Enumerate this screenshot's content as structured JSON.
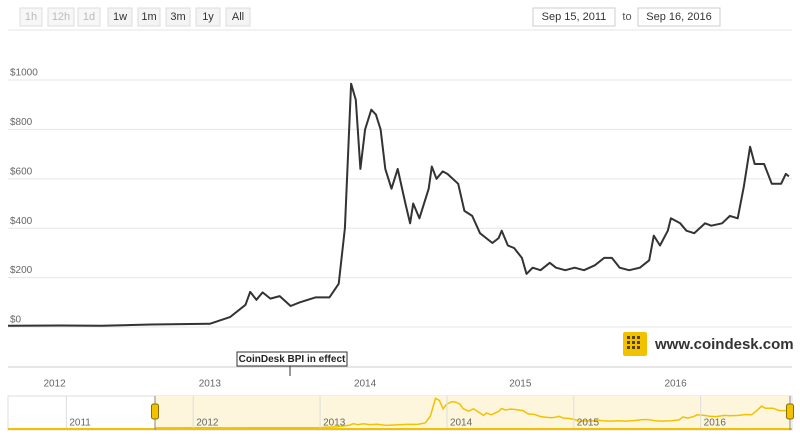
{
  "range_selector": {
    "buttons": [
      "1h",
      "12h",
      "1d",
      "1w",
      "1m",
      "3m",
      "1y",
      "All"
    ],
    "enabled": [
      false,
      false,
      false,
      true,
      true,
      true,
      true,
      true
    ],
    "from": "Sep 15, 2011",
    "to_label": "to",
    "to": "Sep 16, 2016"
  },
  "watermark": "www.coindesk.com",
  "chart_data": {
    "type": "line",
    "annotation": "CoinDesk BPI in effect",
    "x": [
      2011.7,
      2012.04,
      2012.3,
      2012.62,
      2013.0,
      2013.13,
      2013.23,
      2013.26,
      2013.3,
      2013.34,
      2013.39,
      2013.45,
      2013.52,
      2013.58,
      2013.68,
      2013.77,
      2013.83,
      2013.87,
      2013.91,
      2013.94,
      2013.97,
      2014.0,
      2014.04,
      2014.07,
      2014.1,
      2014.13,
      2014.17,
      2014.21,
      2014.26,
      2014.29,
      2014.31,
      2014.35,
      2014.41,
      2014.43,
      2014.46,
      2014.5,
      2014.53,
      2014.6,
      2014.64,
      2014.69,
      2014.74,
      2014.78,
      2014.82,
      2014.86,
      2014.88,
      2014.92,
      2014.96,
      2015.01,
      2015.04,
      2015.08,
      2015.13,
      2015.19,
      2015.23,
      2015.29,
      2015.35,
      2015.41,
      2015.48,
      2015.54,
      2015.59,
      2015.64,
      2015.7,
      2015.77,
      2015.83,
      2015.86,
      2015.9,
      2015.95,
      2015.97,
      2016.03,
      2016.07,
      2016.12,
      2016.19,
      2016.23,
      2016.3,
      2016.35,
      2016.4,
      2016.44,
      2016.48,
      2016.51,
      2016.57,
      2016.62,
      2016.68,
      2016.71,
      2016.73
    ],
    "series": [
      {
        "color": "#333333",
        "values": [
          5,
          6,
          5,
          10,
          13,
          40,
          90,
          142,
          110,
          140,
          115,
          125,
          85,
          100,
          120,
          120,
          175,
          400,
          985,
          920,
          640,
          800,
          880,
          860,
          800,
          640,
          560,
          640,
          500,
          420,
          500,
          440,
          560,
          650,
          600,
          630,
          620,
          580,
          470,
          450,
          380,
          360,
          340,
          360,
          390,
          330,
          320,
          280,
          215,
          240,
          230,
          260,
          240,
          230,
          240,
          230,
          250,
          280,
          280,
          240,
          230,
          240,
          270,
          370,
          330,
          390,
          440,
          420,
          390,
          380,
          420,
          410,
          420,
          450,
          440,
          570,
          730,
          660,
          660,
          580,
          580,
          620,
          610
        ]
      }
    ],
    "xlim": [
      2011.7,
      2016.75
    ],
    "xticks": [
      2012,
      2013,
      2014,
      2015,
      2016
    ],
    "ylim": [
      0,
      1150
    ],
    "yticks": [
      {
        "value": 0,
        "label": "$0"
      },
      {
        "value": 200,
        "label": "$200"
      },
      {
        "value": 400,
        "label": "$400"
      },
      {
        "value": 600,
        "label": "$600"
      },
      {
        "value": 800,
        "label": "$800"
      },
      {
        "value": 1000,
        "label": "$1000"
      }
    ],
    "grid": true,
    "navigator": {
      "color": "#f2c200",
      "xlim": [
        2010.54,
        2016.72
      ],
      "xticks": [
        2011,
        2012,
        2013,
        2014,
        2015,
        2016
      ]
    }
  }
}
